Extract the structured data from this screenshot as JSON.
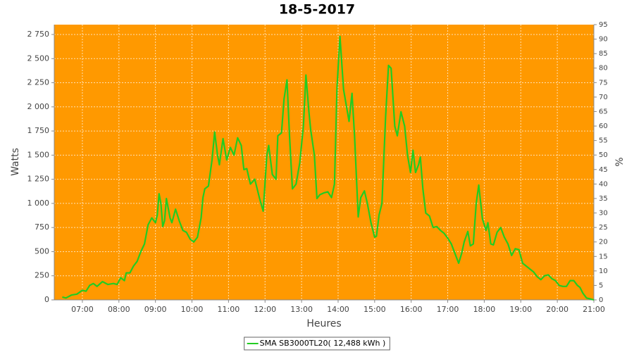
{
  "chart_data": {
    "type": "line",
    "title": "18-5-2017",
    "x_label": "Heures",
    "y_label": "Watts",
    "y2_label": "%",
    "background": "#ff9900",
    "grid": true,
    "x": [
      6.45,
      6.55,
      6.7,
      6.85,
      7.0,
      7.1,
      7.2,
      7.3,
      7.4,
      7.55,
      7.7,
      7.85,
      7.95,
      8.05,
      8.15,
      8.2,
      8.3,
      8.4,
      8.5,
      8.6,
      8.7,
      8.8,
      8.9,
      9.0,
      9.05,
      9.1,
      9.15,
      9.2,
      9.25,
      9.3,
      9.4,
      9.45,
      9.55,
      9.65,
      9.75,
      9.85,
      9.95,
      10.05,
      10.15,
      10.2,
      10.25,
      10.3,
      10.35,
      10.45,
      10.55,
      10.62,
      10.7,
      10.75,
      10.85,
      10.95,
      11.05,
      11.15,
      11.25,
      11.35,
      11.42,
      11.5,
      11.6,
      11.72,
      11.85,
      11.95,
      12.05,
      12.1,
      12.2,
      12.3,
      12.35,
      12.45,
      12.52,
      12.6,
      12.67,
      12.75,
      12.85,
      12.95,
      13.05,
      13.12,
      13.2,
      13.25,
      13.35,
      13.42,
      13.5,
      13.62,
      13.72,
      13.82,
      13.9,
      13.97,
      14.05,
      14.15,
      14.3,
      14.38,
      14.45,
      14.55,
      14.62,
      14.72,
      14.8,
      14.9,
      15.0,
      15.05,
      15.12,
      15.2,
      15.3,
      15.38,
      15.45,
      15.55,
      15.62,
      15.72,
      15.82,
      15.9,
      15.98,
      16.05,
      16.12,
      16.2,
      16.25,
      16.32,
      16.4,
      16.5,
      16.6,
      16.7,
      16.8,
      16.9,
      17.0,
      17.1,
      17.2,
      17.3,
      17.38,
      17.45,
      17.55,
      17.62,
      17.7,
      17.78,
      17.85,
      17.95,
      18.05,
      18.1,
      18.18,
      18.25,
      18.35,
      18.45,
      18.55,
      18.65,
      18.75,
      18.85,
      18.95,
      19.05,
      19.15,
      19.25,
      19.35,
      19.45,
      19.55,
      19.65,
      19.75,
      19.85,
      19.95,
      20.05,
      20.15,
      20.25,
      20.35,
      20.45,
      20.55,
      20.62,
      20.7,
      20.8,
      20.9,
      21.0
    ],
    "series": [
      {
        "name": "SMA SB3000TL20( 12,488 kWh )",
        "color": "#22cc22",
        "values": [
          30,
          20,
          50,
          60,
          100,
          90,
          150,
          170,
          140,
          190,
          160,
          170,
          160,
          230,
          200,
          280,
          280,
          350,
          400,
          500,
          580,
          780,
          850,
          800,
          880,
          1100,
          1000,
          760,
          820,
          1050,
          850,
          800,
          940,
          820,
          720,
          700,
          630,
          600,
          650,
          750,
          850,
          1060,
          1150,
          1180,
          1450,
          1740,
          1500,
          1400,
          1670,
          1450,
          1580,
          1500,
          1680,
          1600,
          1350,
          1360,
          1200,
          1250,
          1050,
          920,
          1500,
          1600,
          1300,
          1250,
          1700,
          1730,
          2080,
          2280,
          1700,
          1150,
          1200,
          1420,
          1800,
          2330,
          1950,
          1760,
          1500,
          1050,
          1090,
          1110,
          1120,
          1060,
          1200,
          2200,
          2730,
          2180,
          1850,
          2140,
          1700,
          860,
          1060,
          1130,
          1000,
          800,
          650,
          660,
          880,
          1000,
          1900,
          2430,
          2400,
          1800,
          1700,
          1950,
          1800,
          1500,
          1320,
          1550,
          1320,
          1400,
          1480,
          1150,
          900,
          870,
          750,
          760,
          720,
          690,
          640,
          580,
          480,
          380,
          480,
          600,
          710,
          560,
          580,
          1000,
          1190,
          840,
          720,
          800,
          580,
          570,
          700,
          750,
          650,
          580,
          460,
          530,
          520,
          380,
          350,
          320,
          290,
          240,
          210,
          250,
          260,
          220,
          200,
          150,
          140,
          140,
          200,
          200,
          150,
          130,
          70,
          20,
          10,
          0
        ]
      }
    ],
    "xlim": [
      6.23,
      21.0
    ],
    "xticks": [
      {
        "value": 7,
        "label": "07:00"
      },
      {
        "value": 8,
        "label": "08:00"
      },
      {
        "value": 9,
        "label": "09:00"
      },
      {
        "value": 10,
        "label": "10:00"
      },
      {
        "value": 11,
        "label": "11:00"
      },
      {
        "value": 12,
        "label": "12:00"
      },
      {
        "value": 13,
        "label": "13:00"
      },
      {
        "value": 14,
        "label": "14:00"
      },
      {
        "value": 15,
        "label": "15:00"
      },
      {
        "value": 16,
        "label": "16:00"
      },
      {
        "value": 17,
        "label": "17:00"
      },
      {
        "value": 18,
        "label": "18:00"
      },
      {
        "value": 19,
        "label": "19:00"
      },
      {
        "value": 20,
        "label": "20:00"
      },
      {
        "value": 21,
        "label": "21:00"
      }
    ],
    "ylim": [
      0,
      2852
    ],
    "yticks": [
      0,
      250,
      500,
      750,
      {
        "value": 1000,
        "label": "1 000"
      },
      {
        "value": 1250,
        "label": "1 250"
      },
      {
        "value": 1500,
        "label": "1 500"
      },
      {
        "value": 1750,
        "label": "1 750"
      },
      {
        "value": 2000,
        "label": "2 000"
      },
      {
        "value": 2250,
        "label": "2 250"
      },
      {
        "value": 2500,
        "label": "2 500"
      },
      {
        "value": 2750,
        "label": "2 750"
      }
    ],
    "y2lim": [
      0,
      95
    ],
    "y2ticks": [
      0,
      5,
      10,
      15,
      20,
      25,
      30,
      35,
      40,
      45,
      50,
      55,
      60,
      65,
      70,
      75,
      80,
      85,
      90,
      95
    ]
  }
}
